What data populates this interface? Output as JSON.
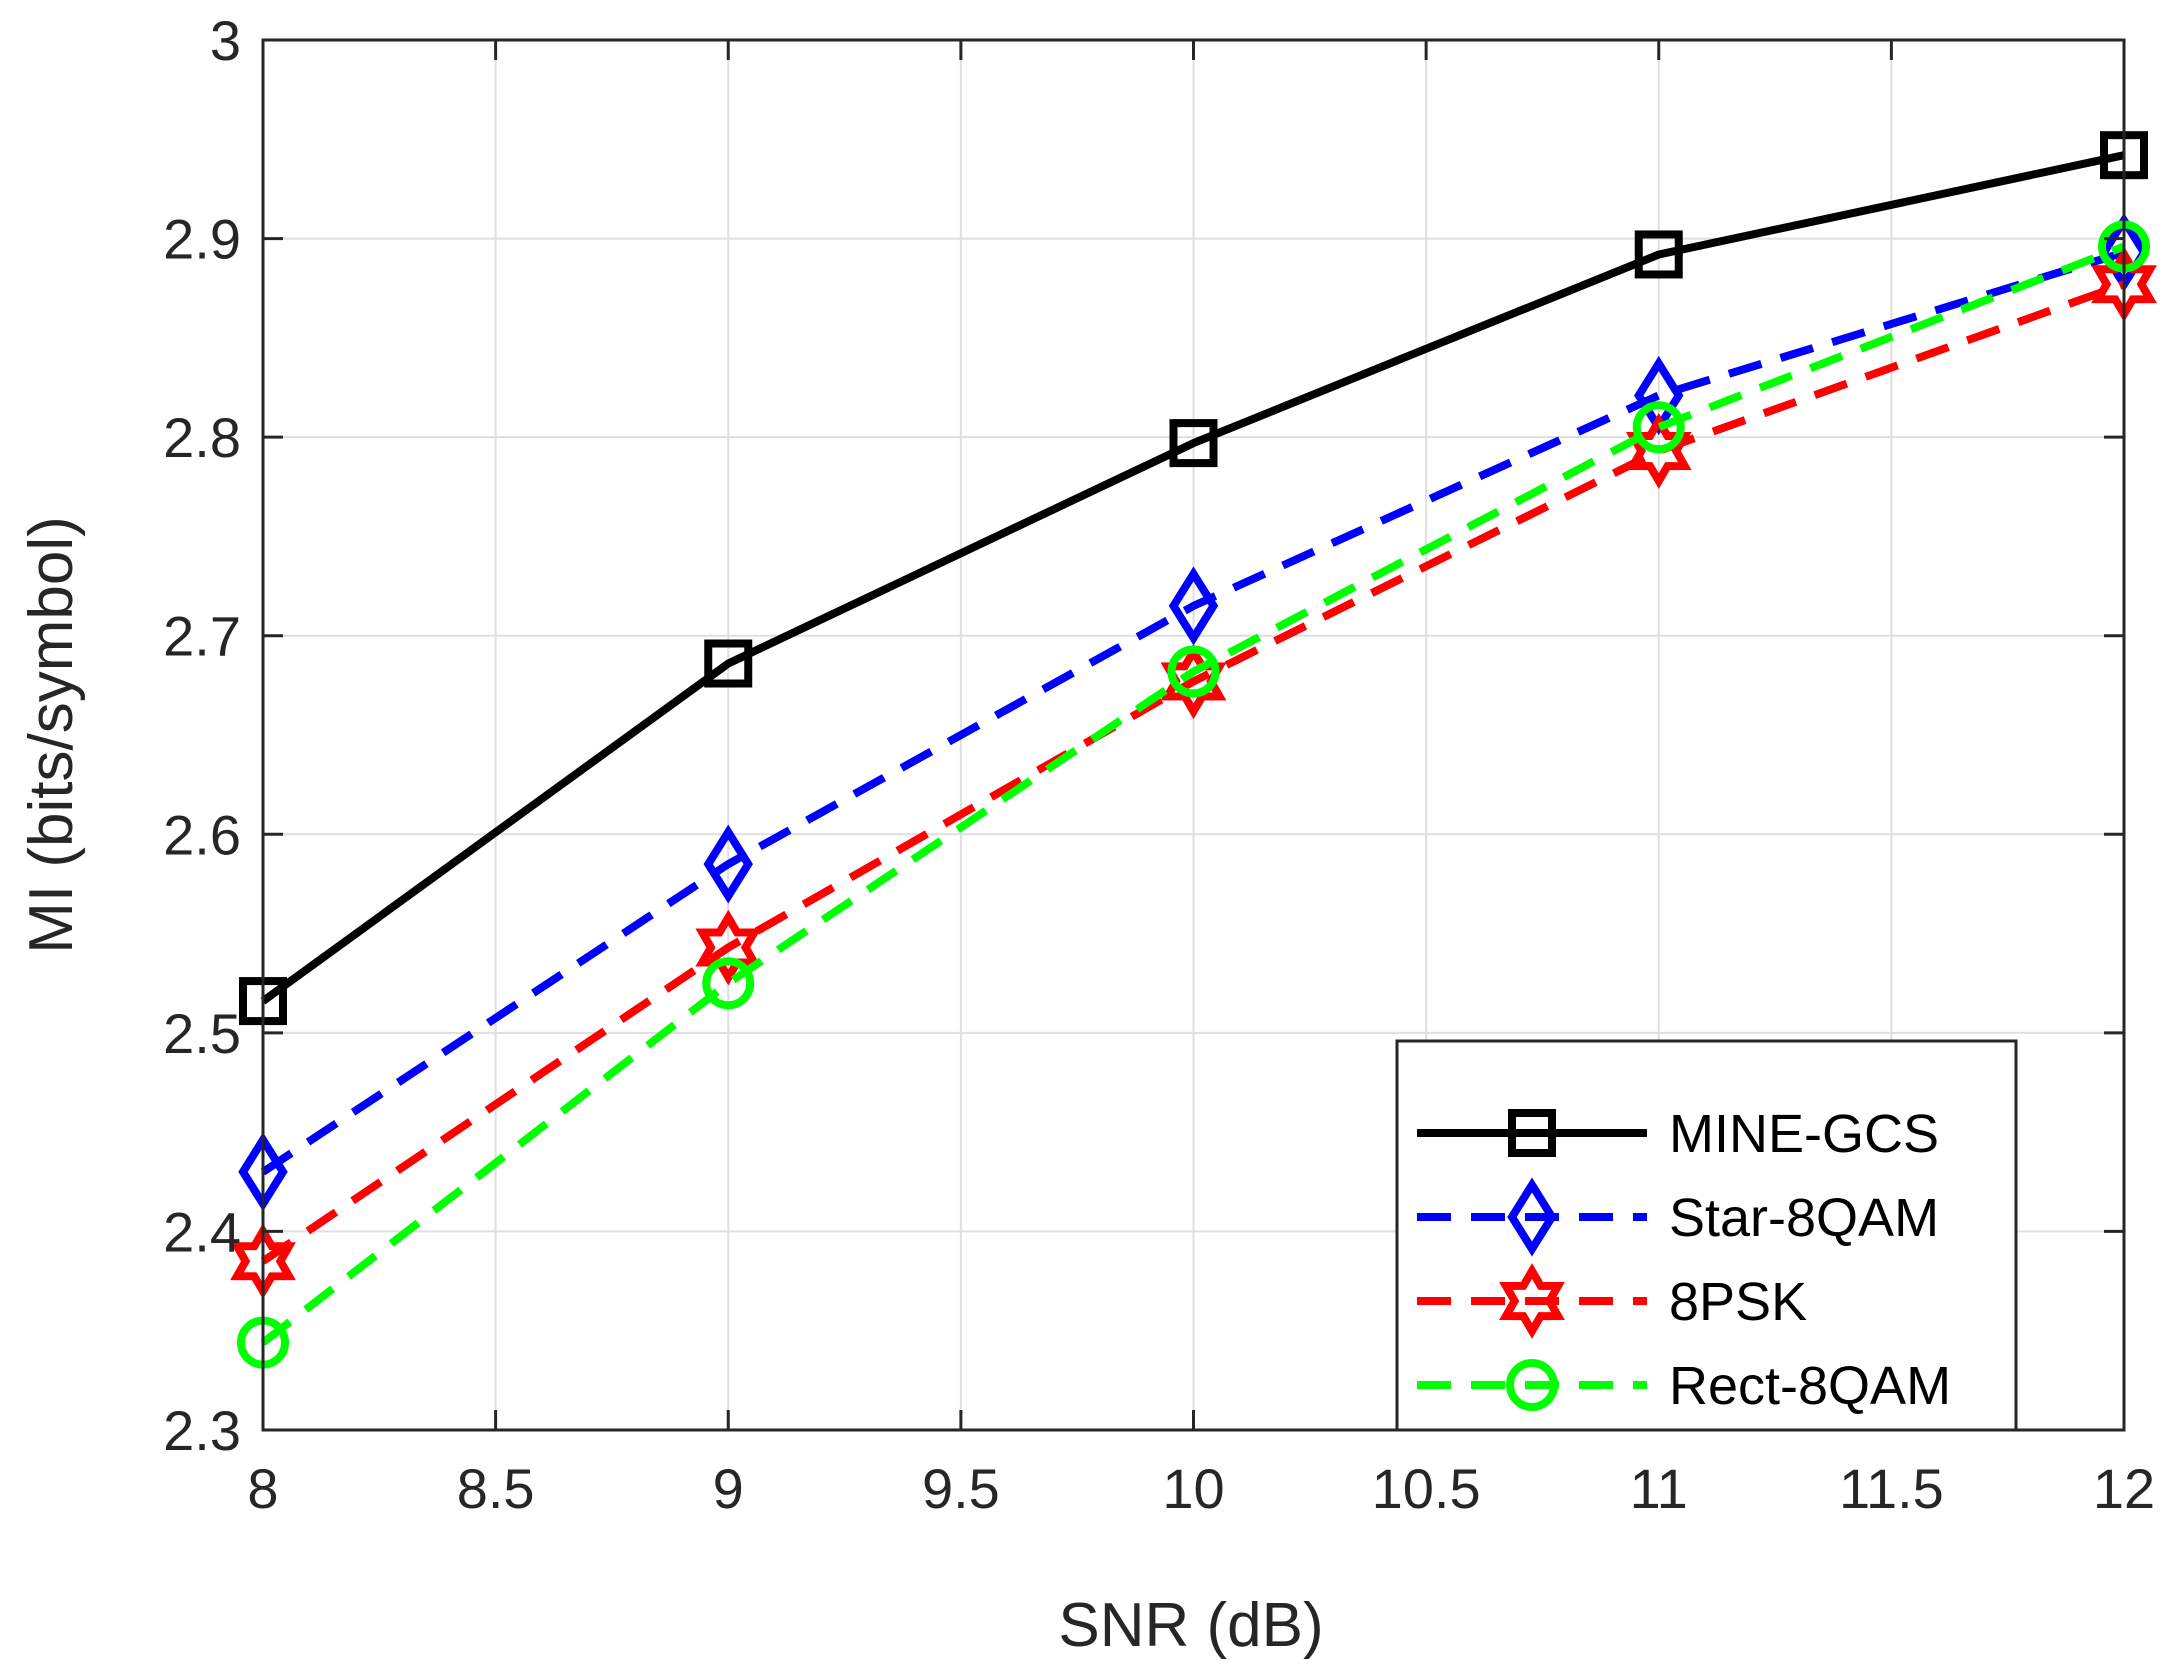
{
  "chart_data": {
    "type": "line",
    "title": "",
    "xlabel": "SNR (dB)",
    "ylabel": "MI (bits/symbol)",
    "xlim": [
      8,
      12
    ],
    "ylim": [
      2.3,
      3
    ],
    "xticks": [
      8,
      8.5,
      9,
      9.5,
      10,
      10.5,
      11,
      11.5,
      12
    ],
    "xtick_labels": [
      "8",
      "8.5",
      "9",
      "9.5",
      "10",
      "10.5",
      "11",
      "11.5",
      "12"
    ],
    "yticks": [
      2.3,
      2.4,
      2.5,
      2.6,
      2.7,
      2.8,
      2.9,
      3
    ],
    "ytick_labels": [
      "2.3",
      "2.4",
      "2.5",
      "2.6",
      "2.7",
      "2.8",
      "2.9",
      "3"
    ],
    "grid": true,
    "legend_position": "bottom-right",
    "x": [
      8,
      9,
      10,
      11,
      12
    ],
    "series": [
      {
        "name": "MINE-GCS",
        "color": "#000000",
        "dash": "solid",
        "marker": "square",
        "values": [
          2.516,
          2.686,
          2.797,
          2.892,
          2.942
        ]
      },
      {
        "name": "Star-8QAM",
        "color": "#0000ff",
        "dash": "dashed",
        "marker": "diamond",
        "values": [
          2.43,
          2.585,
          2.715,
          2.821,
          2.893
        ]
      },
      {
        "name": "8PSK",
        "color": "#ff0000",
        "dash": "dashed",
        "marker": "hexagram",
        "values": [
          2.385,
          2.543,
          2.677,
          2.793,
          2.877
        ]
      },
      {
        "name": "Rect-8QAM",
        "color": "#00ff00",
        "dash": "dashed",
        "marker": "circle",
        "values": [
          2.344,
          2.525,
          2.682,
          2.805,
          2.896
        ]
      }
    ]
  }
}
